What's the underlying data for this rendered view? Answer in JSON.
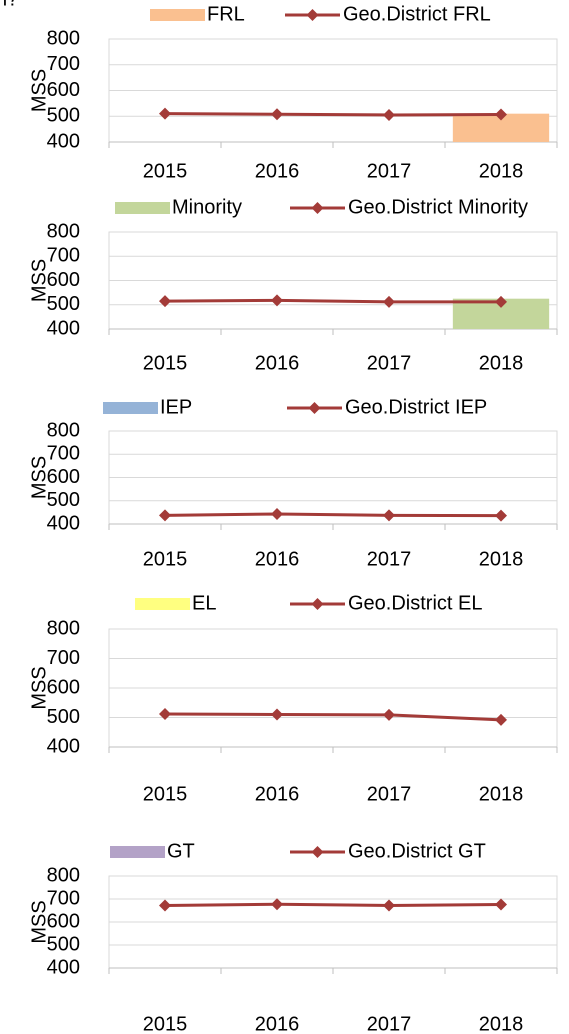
{
  "caption_fragment": "n?",
  "chart_data": [
    {
      "type": "bar",
      "categories": [
        "2015",
        "2016",
        "2017",
        "2018"
      ],
      "ylabel": "MSS",
      "ylim": [
        400,
        800
      ],
      "yticks": [
        400,
        500,
        600,
        700,
        800
      ],
      "grid": true,
      "series": [
        {
          "name": "FRL",
          "type": "bar",
          "color": "#fac090",
          "values": [
            null,
            null,
            null,
            510
          ]
        },
        {
          "name": "Geo.District FRL",
          "type": "line",
          "color": "#a33b38",
          "values": [
            510,
            508,
            505,
            507
          ]
        }
      ]
    },
    {
      "type": "bar",
      "categories": [
        "2015",
        "2016",
        "2017",
        "2018"
      ],
      "ylabel": "MSS",
      "ylim": [
        400,
        800
      ],
      "yticks": [
        400,
        500,
        600,
        700,
        800
      ],
      "grid": true,
      "series": [
        {
          "name": "Minority",
          "type": "bar",
          "color": "#c3d69b",
          "values": [
            null,
            null,
            null,
            525
          ]
        },
        {
          "name": "Geo.District Minority",
          "type": "line",
          "color": "#a33b38",
          "values": [
            515,
            518,
            512,
            512
          ]
        }
      ]
    },
    {
      "type": "bar",
      "categories": [
        "2015",
        "2016",
        "2017",
        "2018"
      ],
      "ylabel": "MSS",
      "ylim": [
        400,
        800
      ],
      "yticks": [
        400,
        500,
        600,
        700,
        800
      ],
      "grid": true,
      "series": [
        {
          "name": "IEP",
          "type": "bar",
          "color": "#95b3d7",
          "values": [
            null,
            null,
            null,
            null
          ]
        },
        {
          "name": "Geo.District IEP",
          "type": "line",
          "color": "#a33b38",
          "values": [
            437,
            443,
            437,
            436
          ]
        }
      ]
    },
    {
      "type": "bar",
      "categories": [
        "2015",
        "2016",
        "2017",
        "2018"
      ],
      "ylabel": "MSS",
      "ylim": [
        400,
        800
      ],
      "yticks": [
        400,
        500,
        600,
        700,
        800
      ],
      "grid": true,
      "series": [
        {
          "name": "EL",
          "type": "bar",
          "color": "#ffff80",
          "values": [
            null,
            null,
            null,
            null
          ]
        },
        {
          "name": "Geo.District EL",
          "type": "line",
          "color": "#a33b38",
          "values": [
            512,
            510,
            509,
            492
          ]
        }
      ]
    },
    {
      "type": "bar",
      "categories": [
        "2015",
        "2016",
        "2017",
        "2018"
      ],
      "ylabel": "MSS",
      "ylim": [
        400,
        800
      ],
      "yticks": [
        400,
        500,
        600,
        700,
        800
      ],
      "grid": true,
      "series": [
        {
          "name": "GT",
          "type": "bar",
          "color": "#b3a2c7",
          "values": [
            null,
            null,
            null,
            null
          ]
        },
        {
          "name": "Geo.District GT",
          "type": "line",
          "color": "#a33b38",
          "values": [
            672,
            677,
            672,
            676
          ]
        }
      ]
    }
  ]
}
